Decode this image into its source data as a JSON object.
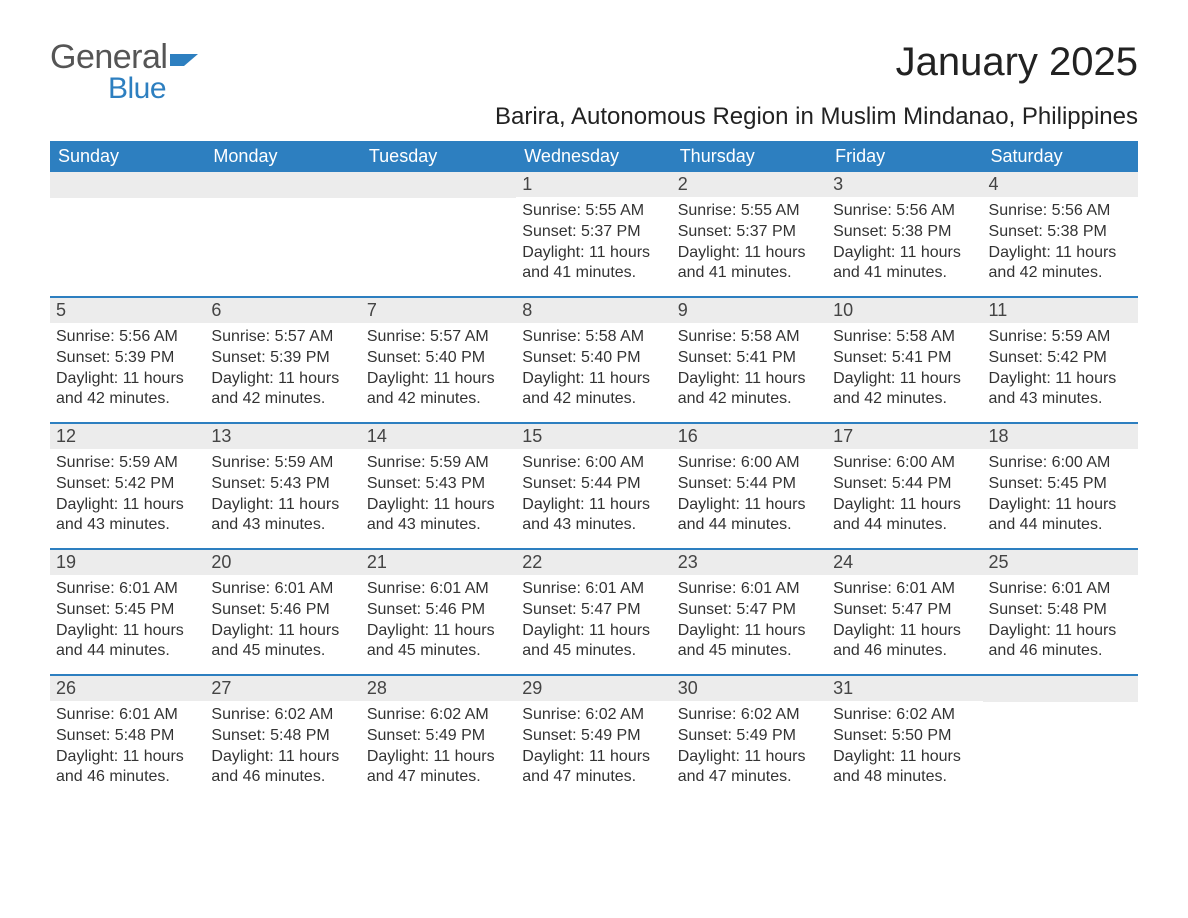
{
  "logo": {
    "word1": "General",
    "word2": "Blue",
    "shape_color": "#2d7fc0",
    "text_dark": "#555555"
  },
  "title": "January 2025",
  "location": "Barira, Autonomous Region in Muslim Mindanao, Philippines",
  "colors": {
    "header_bg": "#2d7fc0",
    "header_text": "#ffffff",
    "daynum_bg": "#ececec",
    "body_text": "#333333",
    "week_border": "#2d7fc0"
  },
  "typography": {
    "title_fontsize": 40,
    "location_fontsize": 24,
    "dayheader_fontsize": 18,
    "body_fontsize": 16
  },
  "day_headers": [
    "Sunday",
    "Monday",
    "Tuesday",
    "Wednesday",
    "Thursday",
    "Friday",
    "Saturday"
  ],
  "weeks": [
    [
      {
        "day": "",
        "sunrise": "",
        "sunset": "",
        "daylight": ""
      },
      {
        "day": "",
        "sunrise": "",
        "sunset": "",
        "daylight": ""
      },
      {
        "day": "",
        "sunrise": "",
        "sunset": "",
        "daylight": ""
      },
      {
        "day": "1",
        "sunrise": "Sunrise: 5:55 AM",
        "sunset": "Sunset: 5:37 PM",
        "daylight": "Daylight: 11 hours and 41 minutes."
      },
      {
        "day": "2",
        "sunrise": "Sunrise: 5:55 AM",
        "sunset": "Sunset: 5:37 PM",
        "daylight": "Daylight: 11 hours and 41 minutes."
      },
      {
        "day": "3",
        "sunrise": "Sunrise: 5:56 AM",
        "sunset": "Sunset: 5:38 PM",
        "daylight": "Daylight: 11 hours and 41 minutes."
      },
      {
        "day": "4",
        "sunrise": "Sunrise: 5:56 AM",
        "sunset": "Sunset: 5:38 PM",
        "daylight": "Daylight: 11 hours and 42 minutes."
      }
    ],
    [
      {
        "day": "5",
        "sunrise": "Sunrise: 5:56 AM",
        "sunset": "Sunset: 5:39 PM",
        "daylight": "Daylight: 11 hours and 42 minutes."
      },
      {
        "day": "6",
        "sunrise": "Sunrise: 5:57 AM",
        "sunset": "Sunset: 5:39 PM",
        "daylight": "Daylight: 11 hours and 42 minutes."
      },
      {
        "day": "7",
        "sunrise": "Sunrise: 5:57 AM",
        "sunset": "Sunset: 5:40 PM",
        "daylight": "Daylight: 11 hours and 42 minutes."
      },
      {
        "day": "8",
        "sunrise": "Sunrise: 5:58 AM",
        "sunset": "Sunset: 5:40 PM",
        "daylight": "Daylight: 11 hours and 42 minutes."
      },
      {
        "day": "9",
        "sunrise": "Sunrise: 5:58 AM",
        "sunset": "Sunset: 5:41 PM",
        "daylight": "Daylight: 11 hours and 42 minutes."
      },
      {
        "day": "10",
        "sunrise": "Sunrise: 5:58 AM",
        "sunset": "Sunset: 5:41 PM",
        "daylight": "Daylight: 11 hours and 42 minutes."
      },
      {
        "day": "11",
        "sunrise": "Sunrise: 5:59 AM",
        "sunset": "Sunset: 5:42 PM",
        "daylight": "Daylight: 11 hours and 43 minutes."
      }
    ],
    [
      {
        "day": "12",
        "sunrise": "Sunrise: 5:59 AM",
        "sunset": "Sunset: 5:42 PM",
        "daylight": "Daylight: 11 hours and 43 minutes."
      },
      {
        "day": "13",
        "sunrise": "Sunrise: 5:59 AM",
        "sunset": "Sunset: 5:43 PM",
        "daylight": "Daylight: 11 hours and 43 minutes."
      },
      {
        "day": "14",
        "sunrise": "Sunrise: 5:59 AM",
        "sunset": "Sunset: 5:43 PM",
        "daylight": "Daylight: 11 hours and 43 minutes."
      },
      {
        "day": "15",
        "sunrise": "Sunrise: 6:00 AM",
        "sunset": "Sunset: 5:44 PM",
        "daylight": "Daylight: 11 hours and 43 minutes."
      },
      {
        "day": "16",
        "sunrise": "Sunrise: 6:00 AM",
        "sunset": "Sunset: 5:44 PM",
        "daylight": "Daylight: 11 hours and 44 minutes."
      },
      {
        "day": "17",
        "sunrise": "Sunrise: 6:00 AM",
        "sunset": "Sunset: 5:44 PM",
        "daylight": "Daylight: 11 hours and 44 minutes."
      },
      {
        "day": "18",
        "sunrise": "Sunrise: 6:00 AM",
        "sunset": "Sunset: 5:45 PM",
        "daylight": "Daylight: 11 hours and 44 minutes."
      }
    ],
    [
      {
        "day": "19",
        "sunrise": "Sunrise: 6:01 AM",
        "sunset": "Sunset: 5:45 PM",
        "daylight": "Daylight: 11 hours and 44 minutes."
      },
      {
        "day": "20",
        "sunrise": "Sunrise: 6:01 AM",
        "sunset": "Sunset: 5:46 PM",
        "daylight": "Daylight: 11 hours and 45 minutes."
      },
      {
        "day": "21",
        "sunrise": "Sunrise: 6:01 AM",
        "sunset": "Sunset: 5:46 PM",
        "daylight": "Daylight: 11 hours and 45 minutes."
      },
      {
        "day": "22",
        "sunrise": "Sunrise: 6:01 AM",
        "sunset": "Sunset: 5:47 PM",
        "daylight": "Daylight: 11 hours and 45 minutes."
      },
      {
        "day": "23",
        "sunrise": "Sunrise: 6:01 AM",
        "sunset": "Sunset: 5:47 PM",
        "daylight": "Daylight: 11 hours and 45 minutes."
      },
      {
        "day": "24",
        "sunrise": "Sunrise: 6:01 AM",
        "sunset": "Sunset: 5:47 PM",
        "daylight": "Daylight: 11 hours and 46 minutes."
      },
      {
        "day": "25",
        "sunrise": "Sunrise: 6:01 AM",
        "sunset": "Sunset: 5:48 PM",
        "daylight": "Daylight: 11 hours and 46 minutes."
      }
    ],
    [
      {
        "day": "26",
        "sunrise": "Sunrise: 6:01 AM",
        "sunset": "Sunset: 5:48 PM",
        "daylight": "Daylight: 11 hours and 46 minutes."
      },
      {
        "day": "27",
        "sunrise": "Sunrise: 6:02 AM",
        "sunset": "Sunset: 5:48 PM",
        "daylight": "Daylight: 11 hours and 46 minutes."
      },
      {
        "day": "28",
        "sunrise": "Sunrise: 6:02 AM",
        "sunset": "Sunset: 5:49 PM",
        "daylight": "Daylight: 11 hours and 47 minutes."
      },
      {
        "day": "29",
        "sunrise": "Sunrise: 6:02 AM",
        "sunset": "Sunset: 5:49 PM",
        "daylight": "Daylight: 11 hours and 47 minutes."
      },
      {
        "day": "30",
        "sunrise": "Sunrise: 6:02 AM",
        "sunset": "Sunset: 5:49 PM",
        "daylight": "Daylight: 11 hours and 47 minutes."
      },
      {
        "day": "31",
        "sunrise": "Sunrise: 6:02 AM",
        "sunset": "Sunset: 5:50 PM",
        "daylight": "Daylight: 11 hours and 48 minutes."
      },
      {
        "day": "",
        "sunrise": "",
        "sunset": "",
        "daylight": ""
      }
    ]
  ]
}
